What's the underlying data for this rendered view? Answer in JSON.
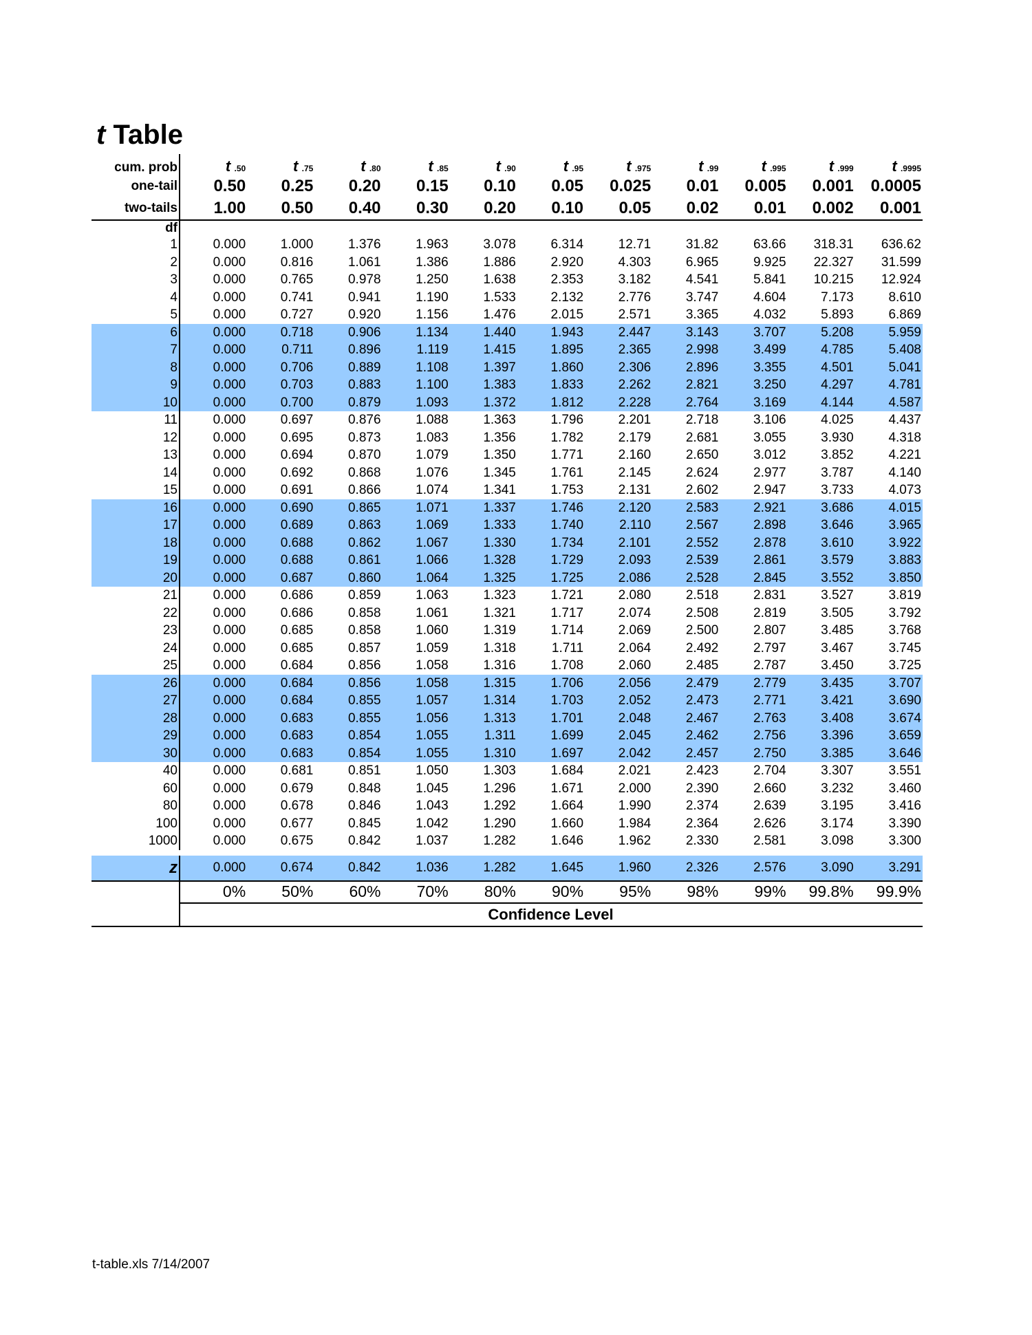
{
  "title": {
    "italic": "t",
    "text": "Table"
  },
  "header": {
    "cum_prob_label": "cum. prob",
    "one_tail_label": "one-tail",
    "two_tails_label": "two-tails",
    "df_label": "df",
    "cum_prob": [
      ".50",
      ".75",
      ".80",
      ".85",
      ".90",
      ".95",
      ".975",
      ".99",
      ".995",
      ".999",
      ".9995"
    ],
    "t_symbol": "t",
    "one_tail": [
      "0.50",
      "0.25",
      "0.20",
      "0.15",
      "0.10",
      "0.05",
      "0.025",
      "0.01",
      "0.005",
      "0.001",
      "0.0005"
    ],
    "two_tails": [
      "1.00",
      "0.50",
      "0.40",
      "0.30",
      "0.20",
      "0.10",
      "0.05",
      "0.02",
      "0.01",
      "0.002",
      "0.001"
    ]
  },
  "highlight_color": "#99ccff",
  "rows": [
    {
      "df": "1",
      "v": [
        "0.000",
        "1.000",
        "1.376",
        "1.963",
        "3.078",
        "6.314",
        "12.71",
        "31.82",
        "63.66",
        "318.31",
        "636.62"
      ]
    },
    {
      "df": "2",
      "v": [
        "0.000",
        "0.816",
        "1.061",
        "1.386",
        "1.886",
        "2.920",
        "4.303",
        "6.965",
        "9.925",
        "22.327",
        "31.599"
      ]
    },
    {
      "df": "3",
      "v": [
        "0.000",
        "0.765",
        "0.978",
        "1.250",
        "1.638",
        "2.353",
        "3.182",
        "4.541",
        "5.841",
        "10.215",
        "12.924"
      ]
    },
    {
      "df": "4",
      "v": [
        "0.000",
        "0.741",
        "0.941",
        "1.190",
        "1.533",
        "2.132",
        "2.776",
        "3.747",
        "4.604",
        "7.173",
        "8.610"
      ]
    },
    {
      "df": "5",
      "v": [
        "0.000",
        "0.727",
        "0.920",
        "1.156",
        "1.476",
        "2.015",
        "2.571",
        "3.365",
        "4.032",
        "5.893",
        "6.869"
      ]
    },
    {
      "df": "6",
      "highlight": true,
      "v": [
        "0.000",
        "0.718",
        "0.906",
        "1.134",
        "1.440",
        "1.943",
        "2.447",
        "3.143",
        "3.707",
        "5.208",
        "5.959"
      ]
    },
    {
      "df": "7",
      "highlight": true,
      "v": [
        "0.000",
        "0.711",
        "0.896",
        "1.119",
        "1.415",
        "1.895",
        "2.365",
        "2.998",
        "3.499",
        "4.785",
        "5.408"
      ]
    },
    {
      "df": "8",
      "highlight": true,
      "v": [
        "0.000",
        "0.706",
        "0.889",
        "1.108",
        "1.397",
        "1.860",
        "2.306",
        "2.896",
        "3.355",
        "4.501",
        "5.041"
      ]
    },
    {
      "df": "9",
      "highlight": true,
      "v": [
        "0.000",
        "0.703",
        "0.883",
        "1.100",
        "1.383",
        "1.833",
        "2.262",
        "2.821",
        "3.250",
        "4.297",
        "4.781"
      ]
    },
    {
      "df": "10",
      "highlight": true,
      "v": [
        "0.000",
        "0.700",
        "0.879",
        "1.093",
        "1.372",
        "1.812",
        "2.228",
        "2.764",
        "3.169",
        "4.144",
        "4.587"
      ]
    },
    {
      "df": "11",
      "v": [
        "0.000",
        "0.697",
        "0.876",
        "1.088",
        "1.363",
        "1.796",
        "2.201",
        "2.718",
        "3.106",
        "4.025",
        "4.437"
      ]
    },
    {
      "df": "12",
      "v": [
        "0.000",
        "0.695",
        "0.873",
        "1.083",
        "1.356",
        "1.782",
        "2.179",
        "2.681",
        "3.055",
        "3.930",
        "4.318"
      ]
    },
    {
      "df": "13",
      "v": [
        "0.000",
        "0.694",
        "0.870",
        "1.079",
        "1.350",
        "1.771",
        "2.160",
        "2.650",
        "3.012",
        "3.852",
        "4.221"
      ]
    },
    {
      "df": "14",
      "v": [
        "0.000",
        "0.692",
        "0.868",
        "1.076",
        "1.345",
        "1.761",
        "2.145",
        "2.624",
        "2.977",
        "3.787",
        "4.140"
      ]
    },
    {
      "df": "15",
      "v": [
        "0.000",
        "0.691",
        "0.866",
        "1.074",
        "1.341",
        "1.753",
        "2.131",
        "2.602",
        "2.947",
        "3.733",
        "4.073"
      ]
    },
    {
      "df": "16",
      "highlight": true,
      "v": [
        "0.000",
        "0.690",
        "0.865",
        "1.071",
        "1.337",
        "1.746",
        "2.120",
        "2.583",
        "2.921",
        "3.686",
        "4.015"
      ]
    },
    {
      "df": "17",
      "highlight": true,
      "v": [
        "0.000",
        "0.689",
        "0.863",
        "1.069",
        "1.333",
        "1.740",
        "2.110",
        "2.567",
        "2.898",
        "3.646",
        "3.965"
      ]
    },
    {
      "df": "18",
      "highlight": true,
      "v": [
        "0.000",
        "0.688",
        "0.862",
        "1.067",
        "1.330",
        "1.734",
        "2.101",
        "2.552",
        "2.878",
        "3.610",
        "3.922"
      ]
    },
    {
      "df": "19",
      "highlight": true,
      "v": [
        "0.000",
        "0.688",
        "0.861",
        "1.066",
        "1.328",
        "1.729",
        "2.093",
        "2.539",
        "2.861",
        "3.579",
        "3.883"
      ]
    },
    {
      "df": "20",
      "highlight": true,
      "v": [
        "0.000",
        "0.687",
        "0.860",
        "1.064",
        "1.325",
        "1.725",
        "2.086",
        "2.528",
        "2.845",
        "3.552",
        "3.850"
      ]
    },
    {
      "df": "21",
      "v": [
        "0.000",
        "0.686",
        "0.859",
        "1.063",
        "1.323",
        "1.721",
        "2.080",
        "2.518",
        "2.831",
        "3.527",
        "3.819"
      ]
    },
    {
      "df": "22",
      "v": [
        "0.000",
        "0.686",
        "0.858",
        "1.061",
        "1.321",
        "1.717",
        "2.074",
        "2.508",
        "2.819",
        "3.505",
        "3.792"
      ]
    },
    {
      "df": "23",
      "v": [
        "0.000",
        "0.685",
        "0.858",
        "1.060",
        "1.319",
        "1.714",
        "2.069",
        "2.500",
        "2.807",
        "3.485",
        "3.768"
      ]
    },
    {
      "df": "24",
      "v": [
        "0.000",
        "0.685",
        "0.857",
        "1.059",
        "1.318",
        "1.711",
        "2.064",
        "2.492",
        "2.797",
        "3.467",
        "3.745"
      ]
    },
    {
      "df": "25",
      "v": [
        "0.000",
        "0.684",
        "0.856",
        "1.058",
        "1.316",
        "1.708",
        "2.060",
        "2.485",
        "2.787",
        "3.450",
        "3.725"
      ]
    },
    {
      "df": "26",
      "highlight": true,
      "v": [
        "0.000",
        "0.684",
        "0.856",
        "1.058",
        "1.315",
        "1.706",
        "2.056",
        "2.479",
        "2.779",
        "3.435",
        "3.707"
      ]
    },
    {
      "df": "27",
      "highlight": true,
      "v": [
        "0.000",
        "0.684",
        "0.855",
        "1.057",
        "1.314",
        "1.703",
        "2.052",
        "2.473",
        "2.771",
        "3.421",
        "3.690"
      ]
    },
    {
      "df": "28",
      "highlight": true,
      "v": [
        "0.000",
        "0.683",
        "0.855",
        "1.056",
        "1.313",
        "1.701",
        "2.048",
        "2.467",
        "2.763",
        "3.408",
        "3.674"
      ]
    },
    {
      "df": "29",
      "highlight": true,
      "v": [
        "0.000",
        "0.683",
        "0.854",
        "1.055",
        "1.311",
        "1.699",
        "2.045",
        "2.462",
        "2.756",
        "3.396",
        "3.659"
      ]
    },
    {
      "df": "30",
      "highlight": true,
      "v": [
        "0.000",
        "0.683",
        "0.854",
        "1.055",
        "1.310",
        "1.697",
        "2.042",
        "2.457",
        "2.750",
        "3.385",
        "3.646"
      ]
    },
    {
      "df": "40",
      "v": [
        "0.000",
        "0.681",
        "0.851",
        "1.050",
        "1.303",
        "1.684",
        "2.021",
        "2.423",
        "2.704",
        "3.307",
        "3.551"
      ]
    },
    {
      "df": "60",
      "v": [
        "0.000",
        "0.679",
        "0.848",
        "1.045",
        "1.296",
        "1.671",
        "2.000",
        "2.390",
        "2.660",
        "3.232",
        "3.460"
      ]
    },
    {
      "df": "80",
      "v": [
        "0.000",
        "0.678",
        "0.846",
        "1.043",
        "1.292",
        "1.664",
        "1.990",
        "2.374",
        "2.639",
        "3.195",
        "3.416"
      ]
    },
    {
      "df": "100",
      "v": [
        "0.000",
        "0.677",
        "0.845",
        "1.042",
        "1.290",
        "1.660",
        "1.984",
        "2.364",
        "2.626",
        "3.174",
        "3.390"
      ]
    },
    {
      "df": "1000",
      "v": [
        "0.000",
        "0.675",
        "0.842",
        "1.037",
        "1.282",
        "1.646",
        "1.962",
        "2.330",
        "2.581",
        "3.098",
        "3.300"
      ]
    }
  ],
  "z_row": {
    "label": "z",
    "v": [
      "0.000",
      "0.674",
      "0.842",
      "1.036",
      "1.282",
      "1.645",
      "1.960",
      "2.326",
      "2.576",
      "3.090",
      "3.291"
    ]
  },
  "confidence": {
    "levels": [
      "0%",
      "50%",
      "60%",
      "70%",
      "80%",
      "90%",
      "95%",
      "98%",
      "99%",
      "99.8%",
      "99.9%"
    ],
    "label": "Confidence Level"
  },
  "footer": "t-table.xls 7/14/2007"
}
